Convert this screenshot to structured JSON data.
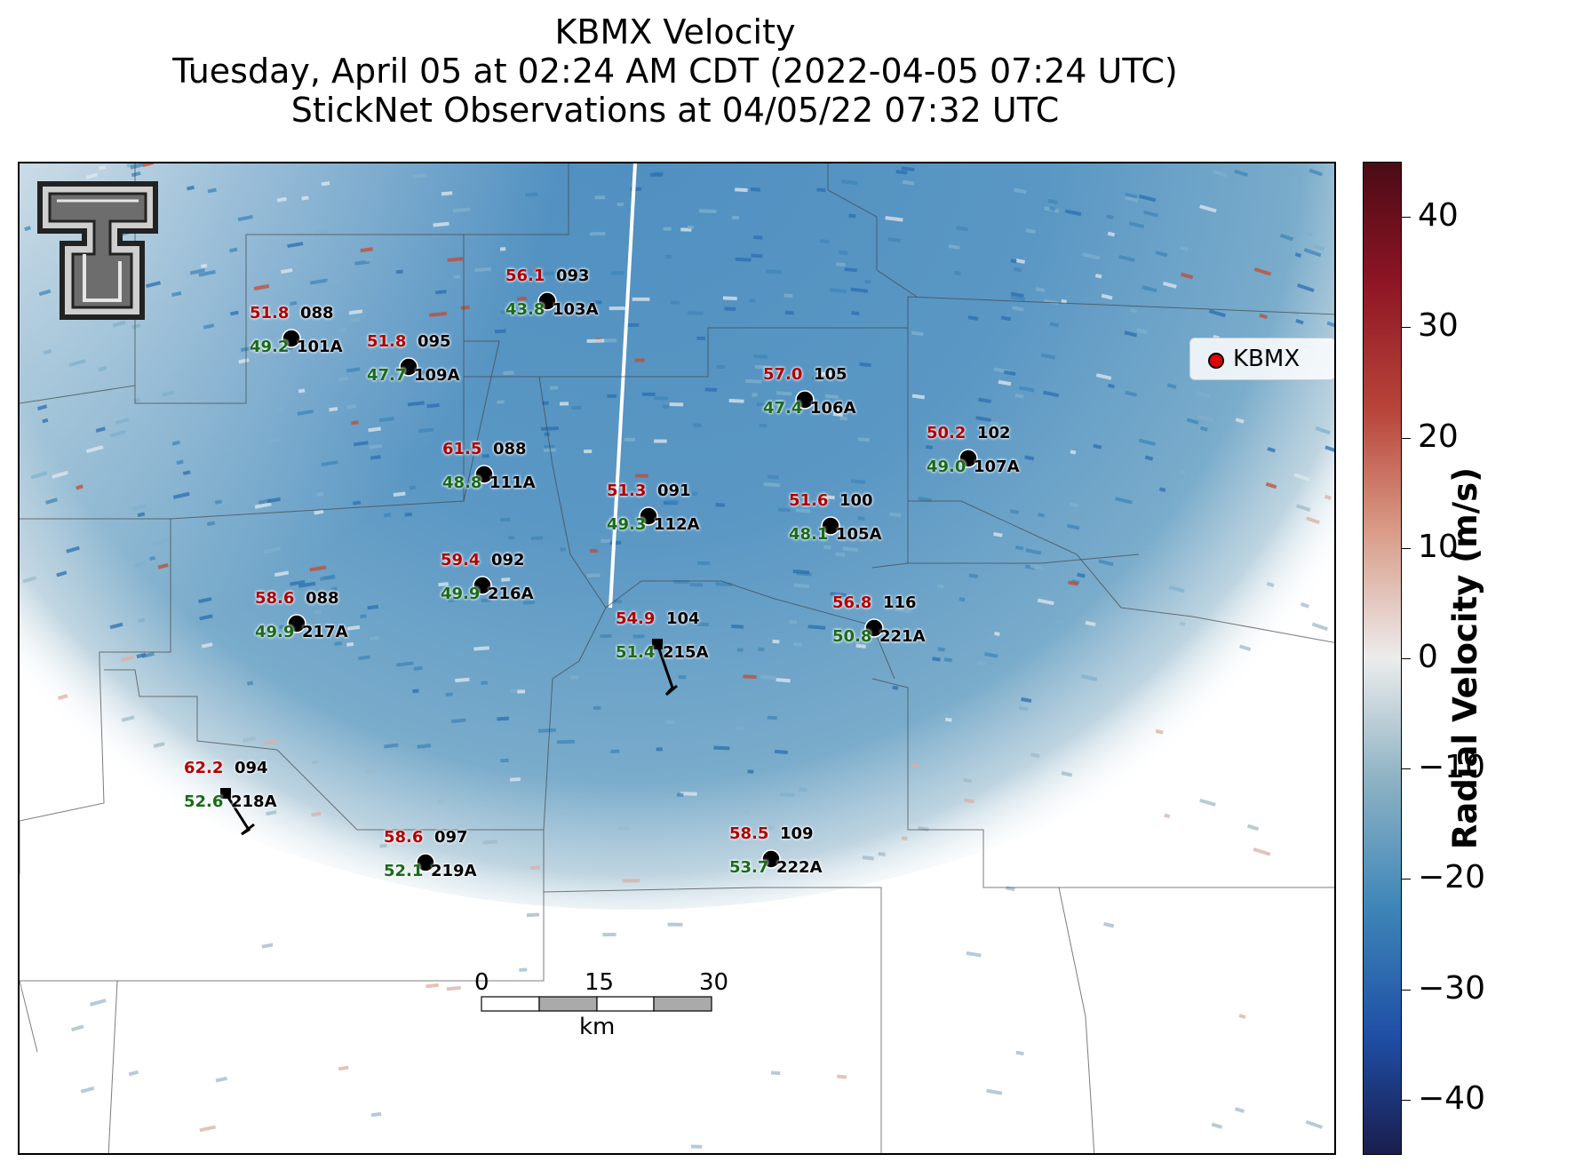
{
  "title": {
    "line1": "KBMX Velocity",
    "line2": "Tuesday, April 05 at 02:24 AM CDT (2022-04-05 07:24 UTC)",
    "line3": "StickNet Observations at 04/05/22 07:32 UTC"
  },
  "legend": {
    "label": "KBMX",
    "marker_color": "#e30000"
  },
  "colorbar": {
    "title": "Radial Velocity (m/s)",
    "ticks": [
      "40",
      "30",
      "20",
      "10",
      "0",
      "−10",
      "−20",
      "−30",
      "−40"
    ],
    "range": [
      -45,
      45
    ],
    "colors": [
      "#4a0b16",
      "#8e1524",
      "#b8453a",
      "#d99a86",
      "#ececec",
      "#8fb3c4",
      "#3f86b8",
      "#1f4fa6",
      "#1a1d4e"
    ]
  },
  "scalebar": {
    "labels": [
      "0",
      "15",
      "30"
    ],
    "unit": "km"
  },
  "logo": {
    "name": "texas-tech-double-t-logo"
  },
  "stations": [
    {
      "id": "101A",
      "gust": "51.8",
      "wind": "49.2",
      "dir": "088",
      "marker": "circle"
    },
    {
      "id": "109A",
      "gust": "51.8",
      "wind": "47.7",
      "dir": "095",
      "marker": "circle"
    },
    {
      "id": "103A",
      "gust": "56.1",
      "wind": "43.8",
      "dir": "093",
      "marker": "circle"
    },
    {
      "id": "106A",
      "gust": "57.0",
      "wind": "47.4",
      "dir": "105",
      "marker": "circle"
    },
    {
      "id": "107A",
      "gust": "50.2",
      "wind": "49.0",
      "dir": "102",
      "marker": "circle"
    },
    {
      "id": "111A",
      "gust": "61.5",
      "wind": "48.8",
      "dir": "088",
      "marker": "circle"
    },
    {
      "id": "112A",
      "gust": "51.3",
      "wind": "49.3",
      "dir": "091",
      "marker": "circle"
    },
    {
      "id": "105A",
      "gust": "51.6",
      "wind": "48.1",
      "dir": "100",
      "marker": "circle"
    },
    {
      "id": "216A",
      "gust": "59.4",
      "wind": "49.9",
      "dir": "092",
      "marker": "circle"
    },
    {
      "id": "217A",
      "gust": "58.6",
      "wind": "49.9",
      "dir": "088",
      "marker": "circle"
    },
    {
      "id": "215A",
      "gust": "54.9",
      "wind": "51.4",
      "dir": "104",
      "marker": "square"
    },
    {
      "id": "221A",
      "gust": "56.8",
      "wind": "50.8",
      "dir": "116",
      "marker": "circle"
    },
    {
      "id": "218A",
      "gust": "62.2",
      "wind": "52.6",
      "dir": "094",
      "marker": "square"
    },
    {
      "id": "219A",
      "gust": "58.6",
      "wind": "52.1",
      "dir": "097",
      "marker": "circle"
    },
    {
      "id": "222A",
      "gust": "58.5",
      "wind": "53.7",
      "dir": "109",
      "marker": "circle"
    }
  ]
}
